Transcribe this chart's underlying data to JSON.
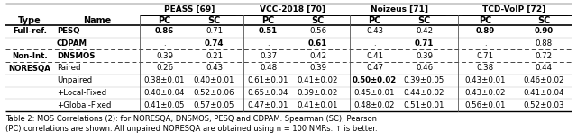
{
  "caption_line1": "Table 2: MOS Correlations (2): for NORESQA, DNSMOS, PESQ and CDPAM. Spearman (SC), Pearson",
  "caption_line2": "(PC) correlations are shown. All unpaired NORESQA are obtained using n = 100 NMRs. ↑ is better.",
  "col_groups": [
    "PEASS [69]",
    "VCC-2018 [70]",
    "Noizeus [71]",
    "TCD-VoIP [72]"
  ],
  "sub_cols": [
    "PC",
    "SC"
  ],
  "row_groups": [
    {
      "group": "Full-ref.",
      "rows": [
        {
          "name": "PESQ",
          "vals": [
            "0.86",
            "0.71",
            "0.51",
            "0.56",
            "0.43",
            "0.42",
            "0.89",
            "0.90"
          ],
          "bold": [
            true,
            false,
            true,
            false,
            false,
            false,
            true,
            true
          ]
        },
        {
          "name": "CDPAM",
          "vals": [
            ".",
            "0.74",
            ".",
            "0.61",
            ".",
            "0.71",
            ".",
            "0.88"
          ],
          "bold": [
            false,
            true,
            false,
            true,
            false,
            true,
            false,
            false
          ]
        }
      ]
    },
    {
      "group": "Non-Int.",
      "rows": [
        {
          "name": "DNSMOS",
          "vals": [
            "0.39",
            "0.21",
            "0.37",
            "0.42",
            "0.41",
            "0.39",
            "0.71",
            "0.72"
          ],
          "bold": [
            false,
            false,
            false,
            false,
            false,
            false,
            false,
            false
          ]
        }
      ]
    },
    {
      "group": "NORESQA",
      "rows": [
        {
          "name": "Paired",
          "vals": [
            "0.26",
            "0.43",
            "0.48",
            "0.39",
            "0.47",
            "0.46",
            "0.38",
            "0.44"
          ],
          "bold": [
            false,
            false,
            false,
            false,
            false,
            false,
            false,
            false
          ]
        },
        {
          "name": "Unpaired",
          "vals": [
            "0.38±0.01",
            "0.40±0.01",
            "0.61±0.01",
            "0.41±0.02",
            "0.50±0.02",
            "0.39±0.05",
            "0.43±0.01",
            "0.46±0.02"
          ],
          "bold": [
            false,
            false,
            false,
            false,
            true,
            false,
            false,
            false
          ]
        },
        {
          "name": "+Local-Fixed",
          "vals": [
            "0.40±0.04",
            "0.52±0.06",
            "0.65±0.04",
            "0.39±0.02",
            "0.45±0.01",
            "0.44±0.02",
            "0.43±0.02",
            "0.41±0.04"
          ],
          "bold": [
            false,
            false,
            false,
            false,
            false,
            false,
            false,
            false
          ]
        },
        {
          "name": "+Global-Fixed",
          "vals": [
            "0.41±0.05",
            "0.57±0.05",
            "0.47±0.01",
            "0.41±0.01",
            "0.48±0.02",
            "0.51±0.01",
            "0.56±0.01",
            "0.52±0.03"
          ],
          "bold": [
            false,
            false,
            false,
            false,
            false,
            false,
            false,
            false
          ]
        }
      ]
    }
  ],
  "bg_color": "#ffffff",
  "figsize": [
    6.4,
    1.56
  ],
  "dpi": 100
}
